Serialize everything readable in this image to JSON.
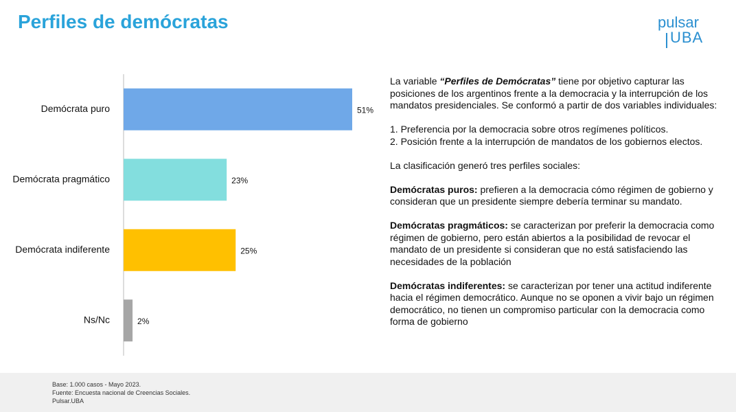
{
  "header": {
    "title": "Perfiles de demócratas",
    "logo_top": "pulsar",
    "logo_bottom": "UBA"
  },
  "chart_data": {
    "type": "bar",
    "orientation": "horizontal",
    "categories": [
      "Demócrata puro",
      "Demócrata pragmático",
      "Demócrata indiferente",
      "Ns/Nc"
    ],
    "values": [
      51,
      23,
      25,
      2
    ],
    "value_labels": [
      "51%",
      "23%",
      "25%",
      "2%"
    ],
    "colors": [
      "#6fa8e8",
      "#83dede",
      "#ffc000",
      "#a6a6a6"
    ]
  },
  "description": {
    "intro": {
      "before": "La variable ",
      "emphasis": "“Perfiles de Demócratas”",
      "after": " tiene por objetivo capturar las posiciones de los argentinos frente a la democracia y la interrupción de los mandatos presidenciales. Se conformó a partir de dos variables individuales:"
    },
    "items": [
      "1. Preferencia por la democracia sobre otros regímenes políticos.",
      "2. Posición frente a la interrupción de mandatos de los gobiernos electos."
    ],
    "lead": "La clasificación generó tres perfiles sociales:",
    "profiles": [
      {
        "term": "Demócratas puros:",
        "text": " prefieren a la democracia cómo régimen de gobierno y consideran que un presidente siempre debería terminar su mandato."
      },
      {
        "term": "Demócratas pragmáticos:",
        "text": " se caracterizan por preferir la democracia como régimen de gobierno, pero están abiertos a la posibilidad de revocar el mandato de un presidente si consideran que no está satisfaciendo las necesidades de la población"
      },
      {
        "term": "Demócratas indiferentes:",
        "text": " se caracterizan por tener una actitud indiferente hacia el régimen democrático. Aunque no se oponen a vivir bajo un régimen democrático, no tienen un compromiso particular  con la democracia como forma de gobierno"
      }
    ]
  },
  "footer": [
    "Base:  1.000 casos - Mayo 2023.",
    "Fuente: Encuesta nacional de Creencias Sociales.",
    "Pulsar.UBA"
  ]
}
